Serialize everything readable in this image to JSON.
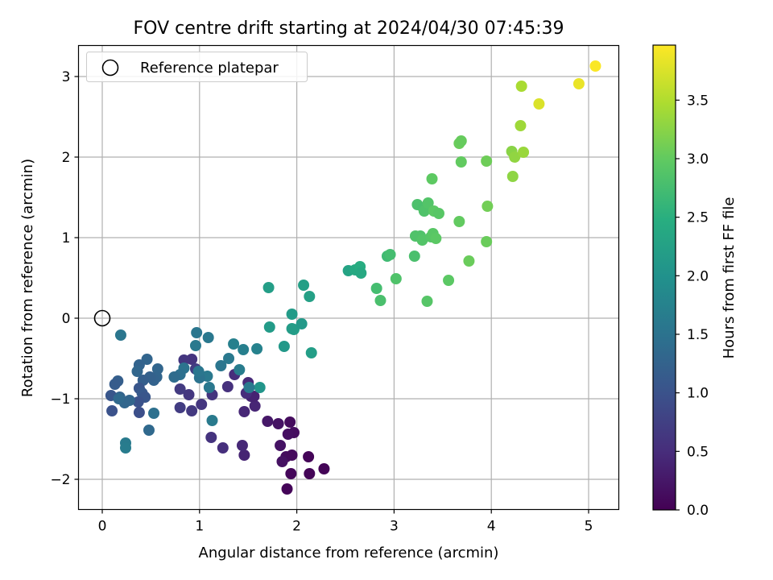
{
  "chart_data": {
    "type": "scatter",
    "title": "FOV centre drift starting at 2024/04/30 07:45:39",
    "xlabel": "Angular distance from reference (arcmin)",
    "ylabel": "Rotation from reference (arcmin)",
    "xlim": [
      -0.25,
      5.32
    ],
    "ylim": [
      -2.38,
      3.39
    ],
    "x_ticks": [
      0,
      1,
      2,
      3,
      4,
      5
    ],
    "x_tick_labels": [
      "0",
      "1",
      "2",
      "3",
      "4",
      "5"
    ],
    "y_ticks": [
      -2,
      -1,
      0,
      1,
      2,
      3
    ],
    "y_tick_labels": [
      "−2",
      "−1",
      "0",
      "1",
      "2",
      "3"
    ],
    "grid": true,
    "legend": {
      "placement": "upper-left",
      "entries": [
        "Reference platepar"
      ]
    },
    "reference_point": {
      "x": 0,
      "y": 0,
      "label": "Reference platepar"
    },
    "colorbar": {
      "label": "Hours from first FF file",
      "colormap": "viridis",
      "range": [
        0,
        3.97
      ],
      "ticks": [
        0,
        0.5,
        1,
        1.5,
        2,
        2.5,
        3,
        3.5
      ],
      "tick_labels": [
        "0.0",
        "0.5",
        "1.0",
        "1.5",
        "2.0",
        "2.5",
        "3.0",
        "3.5"
      ]
    },
    "points": [
      [
        1.9,
        -2.12,
        0.05
      ],
      [
        2.28,
        -1.87,
        0.04
      ],
      [
        2.13,
        -1.93,
        0.04
      ],
      [
        1.94,
        -1.93,
        0.06
      ],
      [
        2.12,
        -1.72,
        0.05
      ],
      [
        1.89,
        -1.72,
        0.12
      ],
      [
        1.95,
        -1.7,
        0.1
      ],
      [
        1.85,
        -1.78,
        0.18
      ],
      [
        1.83,
        -1.58,
        0.2
      ],
      [
        1.97,
        -1.42,
        0.14
      ],
      [
        1.91,
        -1.44,
        0.16
      ],
      [
        1.93,
        -1.29,
        0.13
      ],
      [
        1.81,
        -1.31,
        0.2
      ],
      [
        1.7,
        -1.28,
        0.26
      ],
      [
        1.46,
        -1.7,
        0.4
      ],
      [
        1.44,
        -1.58,
        0.45
      ],
      [
        1.24,
        -1.61,
        0.52
      ],
      [
        1.12,
        -1.48,
        0.58
      ],
      [
        1.46,
        -1.16,
        0.43
      ],
      [
        1.57,
        -1.09,
        0.42
      ],
      [
        1.53,
        -0.97,
        0.4
      ],
      [
        1.56,
        -0.97,
        0.38
      ],
      [
        1.48,
        -0.93,
        0.5
      ],
      [
        1.5,
        -0.8,
        0.46
      ],
      [
        1.29,
        -0.85,
        0.55
      ],
      [
        1.36,
        -0.7,
        0.5
      ],
      [
        1.13,
        -0.95,
        0.6
      ],
      [
        1.02,
        -1.07,
        0.62
      ],
      [
        0.92,
        -1.15,
        0.66
      ],
      [
        0.8,
        -1.11,
        0.7
      ],
      [
        0.89,
        -0.95,
        0.63
      ],
      [
        0.8,
        -0.88,
        0.68
      ],
      [
        0.92,
        -0.51,
        0.58
      ],
      [
        0.84,
        -0.52,
        0.62
      ],
      [
        0.96,
        -0.63,
        0.7
      ],
      [
        0.97,
        -0.18,
        1.55
      ],
      [
        0.96,
        -0.34,
        1.6
      ],
      [
        1.09,
        -0.24,
        1.58
      ],
      [
        1.13,
        -1.27,
        1.62
      ],
      [
        1.35,
        -0.32,
        1.72
      ],
      [
        1.45,
        -0.39,
        1.7
      ],
      [
        1.59,
        -0.38,
        1.75
      ],
      [
        1.62,
        -0.86,
        2.05
      ],
      [
        1.51,
        -0.86,
        1.6
      ],
      [
        1.41,
        -0.64,
        1.65
      ],
      [
        1.3,
        -0.5,
        1.6
      ],
      [
        1.22,
        -0.59,
        1.55
      ],
      [
        1.08,
        -0.72,
        1.6
      ],
      [
        1.1,
        -0.86,
        1.58
      ],
      [
        1.0,
        -0.74,
        1.5
      ],
      [
        0.99,
        -0.66,
        1.55
      ],
      [
        0.84,
        -0.62,
        1.5
      ],
      [
        0.8,
        -0.7,
        1.45
      ],
      [
        0.74,
        -0.73,
        1.4
      ],
      [
        0.57,
        -0.63,
        1.3
      ],
      [
        0.56,
        -0.73,
        1.28
      ],
      [
        0.53,
        -0.77,
        1.25
      ],
      [
        0.49,
        -0.73,
        1.22
      ],
      [
        0.42,
        -0.77,
        1.2
      ],
      [
        0.46,
        -0.51,
        1.28
      ],
      [
        0.38,
        -0.58,
        1.25
      ],
      [
        0.36,
        -0.66,
        1.3
      ],
      [
        0.38,
        -0.87,
        1.05
      ],
      [
        0.41,
        -0.93,
        1.1
      ],
      [
        0.44,
        -0.98,
        1.05
      ],
      [
        0.37,
        -1.04,
        1.0
      ],
      [
        0.38,
        -1.17,
        0.95
      ],
      [
        0.48,
        -1.39,
        1.35
      ],
      [
        0.53,
        -1.18,
        1.45
      ],
      [
        0.28,
        -1.02,
        1.28
      ],
      [
        0.23,
        -1.05,
        1.3
      ],
      [
        0.18,
        -0.98,
        1.25
      ],
      [
        0.16,
        -0.78,
        1.2
      ],
      [
        0.13,
        -0.82,
        1.15
      ],
      [
        0.09,
        -0.96,
        1.05
      ],
      [
        0.1,
        -1.15,
        1.0
      ],
      [
        0.17,
        -1.0,
        1.35
      ],
      [
        0.19,
        -0.21,
        1.55
      ],
      [
        0.24,
        -1.55,
        1.62
      ],
      [
        0.24,
        -1.61,
        1.65
      ],
      [
        1.71,
        0.38,
        2.2
      ],
      [
        1.72,
        -0.11,
        2.15
      ],
      [
        1.87,
        -0.35,
        2.1
      ],
      [
        1.95,
        0.05,
        2.15
      ],
      [
        1.97,
        -0.14,
        2.2
      ],
      [
        1.95,
        -0.13,
        2.18
      ],
      [
        2.05,
        -0.07,
        2.12
      ],
      [
        2.07,
        0.41,
        2.22
      ],
      [
        2.13,
        0.27,
        2.25
      ],
      [
        2.15,
        -0.43,
        2.2
      ],
      [
        2.53,
        0.59,
        2.3
      ],
      [
        2.6,
        0.6,
        2.4
      ],
      [
        2.65,
        0.64,
        2.45
      ],
      [
        2.66,
        0.56,
        2.38
      ],
      [
        2.82,
        0.37,
        2.75
      ],
      [
        2.86,
        0.22,
        2.8
      ],
      [
        2.93,
        0.77,
        2.7
      ],
      [
        2.96,
        0.79,
        2.75
      ],
      [
        3.02,
        0.49,
        2.85
      ],
      [
        3.21,
        0.77,
        2.8
      ],
      [
        3.22,
        1.02,
        2.85
      ],
      [
        3.27,
        1.02,
        2.85
      ],
      [
        3.29,
        0.97,
        2.88
      ],
      [
        3.24,
        1.41,
        2.82
      ],
      [
        3.3,
        1.37,
        2.8
      ],
      [
        3.31,
        1.33,
        2.85
      ],
      [
        3.35,
        1.43,
        2.88
      ],
      [
        3.34,
        0.21,
        2.9
      ],
      [
        3.38,
        1.01,
        2.9
      ],
      [
        3.4,
        1.05,
        2.92
      ],
      [
        3.41,
        1.33,
        2.95
      ],
      [
        3.43,
        0.99,
        2.95
      ],
      [
        3.46,
        1.3,
        2.92
      ],
      [
        3.39,
        1.73,
        2.97
      ],
      [
        3.56,
        0.47,
        2.95
      ],
      [
        3.67,
        1.2,
        3.0
      ],
      [
        3.67,
        2.17,
        3.05
      ],
      [
        3.69,
        2.2,
        3.03
      ],
      [
        3.69,
        1.94,
        3.0
      ],
      [
        3.77,
        0.71,
        3.05
      ],
      [
        3.95,
        0.95,
        3.05
      ],
      [
        3.96,
        1.39,
        3.1
      ],
      [
        3.95,
        1.95,
        3.08
      ],
      [
        4.21,
        2.07,
        3.25
      ],
      [
        4.22,
        1.76,
        3.28
      ],
      [
        4.24,
        2.0,
        3.3
      ],
      [
        4.33,
        2.06,
        3.35
      ],
      [
        4.3,
        2.39,
        3.38
      ],
      [
        4.31,
        2.88,
        3.45
      ],
      [
        4.49,
        2.66,
        3.75
      ],
      [
        4.9,
        2.91,
        3.85
      ],
      [
        5.07,
        3.13,
        3.95
      ]
    ]
  }
}
